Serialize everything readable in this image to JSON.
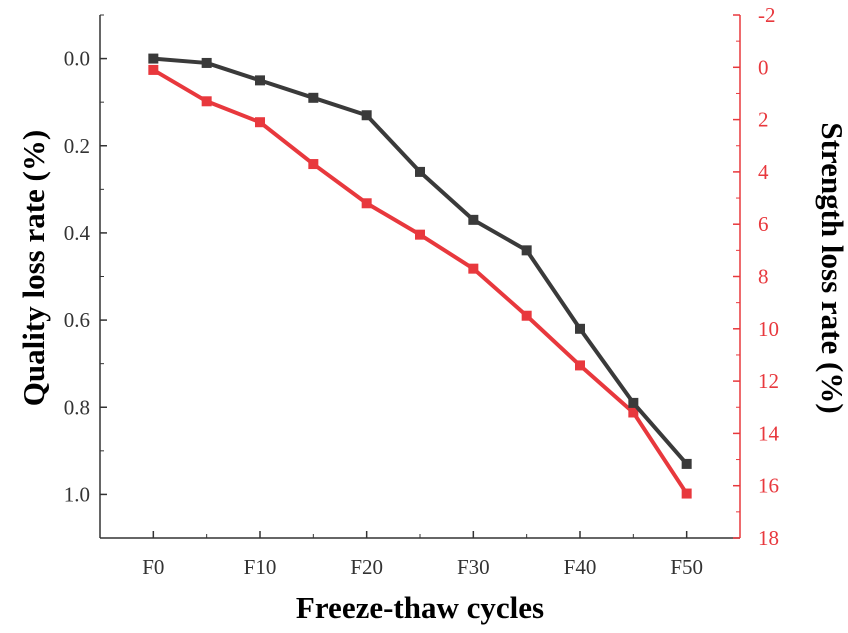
{
  "chart_data": {
    "type": "line",
    "xlabel": "Freeze-thaw cycles",
    "ylabel": "Quality loss rate (%)",
    "y2label": "Strength loss rate (%)",
    "x_tick_labels": [
      "F0",
      "F10",
      "F20",
      "F30",
      "F40",
      "F50"
    ],
    "x": [
      0,
      5,
      10,
      15,
      20,
      25,
      30,
      35,
      40,
      45,
      50
    ],
    "xlim": [
      -5,
      55
    ],
    "ylim": [
      1.1,
      -0.1
    ],
    "y_ticks": [
      "0.0",
      "0.2",
      "0.4",
      "0.6",
      "0.8",
      "1.0"
    ],
    "y2lim": [
      18,
      -2
    ],
    "y2_ticks": [
      "-2",
      "0",
      "2",
      "4",
      "6",
      "8",
      "10",
      "12",
      "14",
      "16",
      "18"
    ],
    "series": [
      {
        "name": "Quality loss rate",
        "axis": "left",
        "color": "#3a3a3a",
        "values": [
          0.0,
          0.01,
          0.05,
          0.09,
          0.13,
          0.26,
          0.37,
          0.44,
          0.62,
          0.79,
          0.93
        ]
      },
      {
        "name": "Strength loss rate",
        "axis": "right",
        "color": "#e8383d",
        "values": [
          0.1,
          1.3,
          2.1,
          3.7,
          5.2,
          6.4,
          7.7,
          9.5,
          11.4,
          13.2,
          16.3
        ]
      }
    ]
  }
}
